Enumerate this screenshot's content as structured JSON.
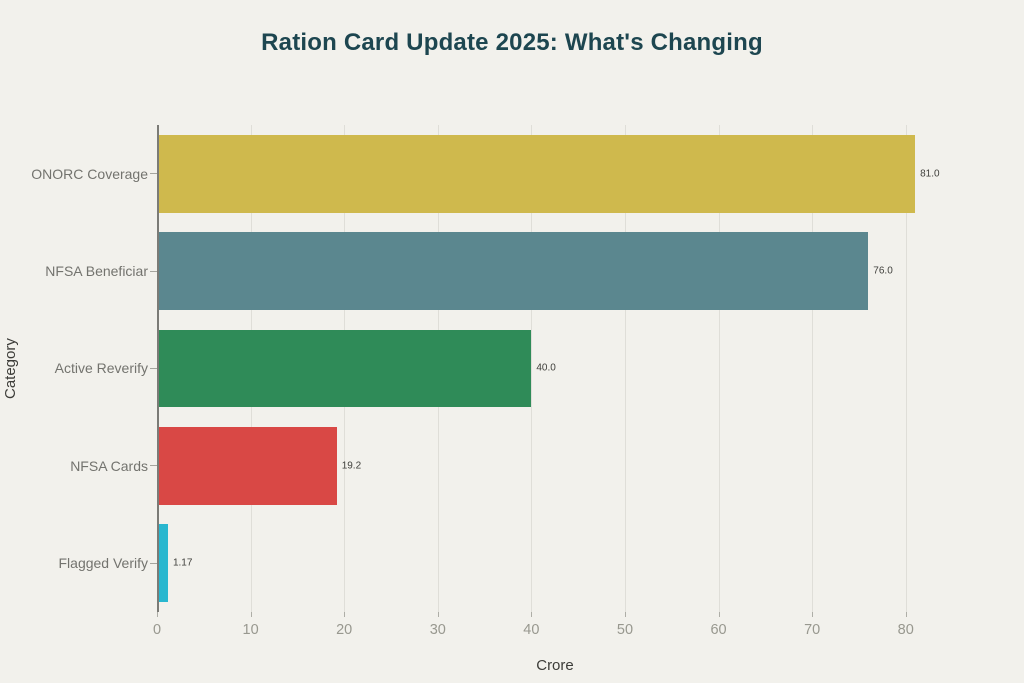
{
  "chart_data": {
    "type": "bar",
    "orientation": "horizontal",
    "title": "Ration Card Update 2025: What's Changing",
    "categories": [
      "ONORC Coverage",
      "NFSA Beneficiar",
      "Active Reverify",
      "NFSA Cards",
      "Flagged Verify"
    ],
    "values": [
      81.0,
      76.0,
      40.0,
      19.2,
      1.17
    ],
    "value_labels": [
      "81.0",
      "76.0",
      "40.0",
      "19.2",
      "1.17"
    ],
    "bar_colors": [
      "#cfb94d",
      "#5b878f",
      "#2f8b58",
      "#d94845",
      "#29b7cf"
    ],
    "xlabel": "Crore",
    "ylabel": "Category",
    "xlim": [
      0,
      85.05
    ],
    "xticks": [
      0,
      10,
      20,
      30,
      40,
      50,
      60,
      70,
      80
    ],
    "grid": true,
    "legend": false
  },
  "colors": {
    "background": "#f2f1ec",
    "title": "#1d4650",
    "gridline": "#dfded8",
    "axis_line": "#7b7b76",
    "tick_label": "#98988f",
    "category_label": "#73736e",
    "axis_title": "#3c3c38",
    "value_label": "#3f3f3b"
  }
}
